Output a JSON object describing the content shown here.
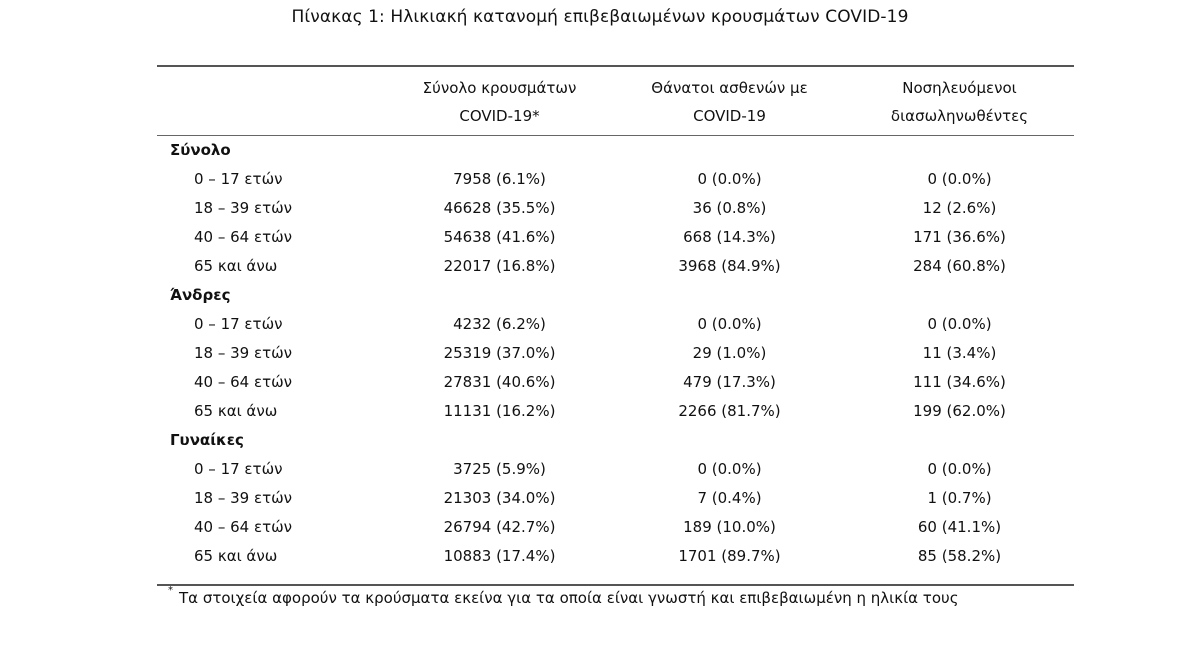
{
  "caption": "Πίνακας 1: Ηλικιακή κατανομή επιβεβαιωμένων κρουσμάτων COVID-19",
  "columns": [
    {
      "line1": "Σύνολο κρουσμάτων",
      "line2": "COVID-19*"
    },
    {
      "line1": "Θάνατοι ασθενών με",
      "line2": "COVID-19"
    },
    {
      "line1": "Νοσηλευόμενοι",
      "line2": "διασωληνωθέντες"
    }
  ],
  "groups": [
    {
      "title": "Σύνολο",
      "rows": [
        {
          "label": "0 – 17 ετών",
          "cases": "7958 (6.1%)",
          "deaths": "0 (0.0%)",
          "intubated": "0 (0.0%)"
        },
        {
          "label": "18 – 39 ετών",
          "cases": "46628 (35.5%)",
          "deaths": "36 (0.8%)",
          "intubated": "12 (2.6%)"
        },
        {
          "label": "40 – 64 ετών",
          "cases": "54638 (41.6%)",
          "deaths": "668 (14.3%)",
          "intubated": "171 (36.6%)"
        },
        {
          "label": "65 και άνω",
          "cases": "22017 (16.8%)",
          "deaths": "3968 (84.9%)",
          "intubated": "284 (60.8%)"
        }
      ]
    },
    {
      "title": "Άνδρες",
      "rows": [
        {
          "label": "0 – 17 ετών",
          "cases": "4232 (6.2%)",
          "deaths": "0 (0.0%)",
          "intubated": "0 (0.0%)"
        },
        {
          "label": "18 – 39 ετών",
          "cases": "25319 (37.0%)",
          "deaths": "29 (1.0%)",
          "intubated": "11 (3.4%)"
        },
        {
          "label": "40 – 64 ετών",
          "cases": "27831 (40.6%)",
          "deaths": "479 (17.3%)",
          "intubated": "111 (34.6%)"
        },
        {
          "label": "65 και άνω",
          "cases": "11131 (16.2%)",
          "deaths": "2266 (81.7%)",
          "intubated": "199 (62.0%)"
        }
      ]
    },
    {
      "title": "Γυναίκες",
      "rows": [
        {
          "label": "0 – 17 ετών",
          "cases": "3725 (5.9%)",
          "deaths": "0 (0.0%)",
          "intubated": "0 (0.0%)"
        },
        {
          "label": "18 – 39 ετών",
          "cases": "21303 (34.0%)",
          "deaths": "7 (0.4%)",
          "intubated": "1 (0.7%)"
        },
        {
          "label": "40 – 64 ετών",
          "cases": "26794 (42.7%)",
          "deaths": "189 (10.0%)",
          "intubated": "60 (41.1%)"
        },
        {
          "label": "65 και άνω",
          "cases": "10883 (17.4%)",
          "deaths": "1701 (89.7%)",
          "intubated": "85 (58.2%)"
        }
      ]
    }
  ],
  "footnote": {
    "mark": "*",
    "text": "Τα στοιχεία αφορούν τα κρούσματα εκείνα για τα οποία είναι γνωστή και επιβεβαιωμένη η ηλικία τους"
  }
}
